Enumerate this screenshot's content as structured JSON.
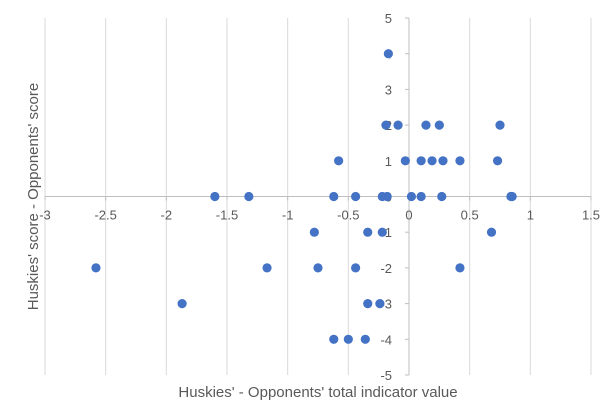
{
  "chart_data": {
    "type": "scatter",
    "title": "",
    "xlabel": "Huskies' - Opponents' total indicator value",
    "ylabel": "Huskies' score - Opponents' score",
    "xlim": [
      -3,
      1.5
    ],
    "ylim": [
      -5,
      5
    ],
    "x_ticks": [
      -3,
      -2.5,
      -2,
      -1.5,
      -1,
      -0.5,
      0,
      0.5,
      1,
      1.5
    ],
    "y_ticks": [
      -5,
      -4,
      -3,
      -2,
      -1,
      0,
      1,
      2,
      3,
      4,
      5
    ],
    "x_tick_labels": [
      "-3",
      "-2.5",
      "-2",
      "-1.5",
      "-1",
      "-0.5",
      "0",
      "0.5",
      "1",
      "1.5"
    ],
    "y_tick_labels": [
      "-5",
      "-4",
      "-3",
      "-2",
      "-1",
      "0",
      "1",
      "2",
      "3",
      "4",
      "5"
    ],
    "grid": "vertical",
    "legend": "none",
    "marker_color": "#4472C4",
    "gridline_color": "#d9d9d9",
    "axis_color": "#bfbfbf",
    "series": [
      {
        "points": [
          [
            -2.58,
            -2
          ],
          [
            -1.87,
            -3
          ],
          [
            -1.6,
            0
          ],
          [
            -1.32,
            0
          ],
          [
            -1.17,
            -2
          ],
          [
            -0.78,
            -1
          ],
          [
            -0.75,
            -2
          ],
          [
            -0.62,
            0
          ],
          [
            -0.62,
            -4
          ],
          [
            -0.58,
            1
          ],
          [
            -0.5,
            -4
          ],
          [
            -0.44,
            0
          ],
          [
            -0.44,
            -2
          ],
          [
            -0.36,
            -4
          ],
          [
            -0.34,
            -1
          ],
          [
            -0.34,
            -3
          ],
          [
            -0.24,
            -3
          ],
          [
            -0.22,
            0
          ],
          [
            -0.22,
            -1
          ],
          [
            -0.19,
            2
          ],
          [
            -0.18,
            0
          ],
          [
            -0.17,
            4
          ],
          [
            -0.09,
            2
          ],
          [
            -0.03,
            1
          ],
          [
            0.02,
            0
          ],
          [
            0.1,
            1
          ],
          [
            0.1,
            0
          ],
          [
            0.14,
            2
          ],
          [
            0.19,
            1
          ],
          [
            0.25,
            2
          ],
          [
            0.27,
            0
          ],
          [
            0.28,
            1
          ],
          [
            0.42,
            1
          ],
          [
            0.42,
            -2
          ],
          [
            0.68,
            -1
          ],
          [
            0.73,
            1
          ],
          [
            0.75,
            2
          ],
          [
            0.84,
            0
          ],
          [
            0.85,
            0
          ]
        ]
      }
    ]
  }
}
